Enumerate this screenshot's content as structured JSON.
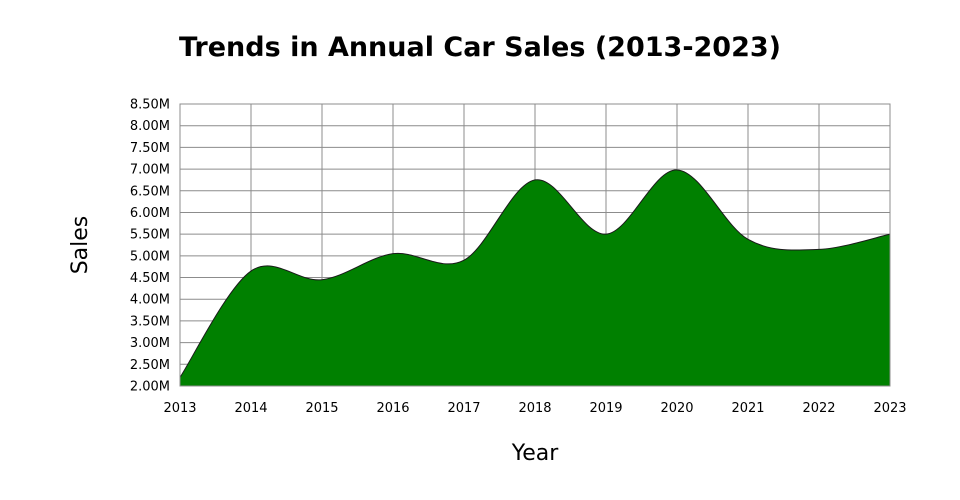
{
  "chart_data": {
    "type": "area",
    "title": "Trends in Annual Car Sales (2013-2023)",
    "xlabel": "Year",
    "ylabel": "Sales",
    "x": [
      "2013",
      "2014",
      "2015",
      "2016",
      "2017",
      "2018",
      "2019",
      "2020",
      "2021",
      "2022",
      "2023"
    ],
    "series": [
      {
        "values": [
          2200000,
          4650000,
          4450000,
          5050000,
          4900000,
          6750000,
          5500000,
          6980000,
          5380000,
          5150000,
          5500000
        ],
        "color": "#008000"
      }
    ],
    "ylim": [
      2000000,
      8500000
    ],
    "yticks": [
      {
        "value": 2000000,
        "label": "2.00M"
      },
      {
        "value": 2500000,
        "label": "2.50M"
      },
      {
        "value": 3000000,
        "label": "3.00M"
      },
      {
        "value": 3500000,
        "label": "3.50M"
      },
      {
        "value": 4000000,
        "label": "4.00M"
      },
      {
        "value": 4500000,
        "label": "4.50M"
      },
      {
        "value": 5000000,
        "label": "5.00M"
      },
      {
        "value": 5500000,
        "label": "5.50M"
      },
      {
        "value": 6000000,
        "label": "6.00M"
      },
      {
        "value": 6500000,
        "label": "6.50M"
      },
      {
        "value": 7000000,
        "label": "7.00M"
      },
      {
        "value": 7500000,
        "label": "7.50M"
      },
      {
        "value": 8000000,
        "label": "8.00M"
      },
      {
        "value": 8500000,
        "label": "8.50M"
      }
    ],
    "grid": true,
    "legend": false
  }
}
